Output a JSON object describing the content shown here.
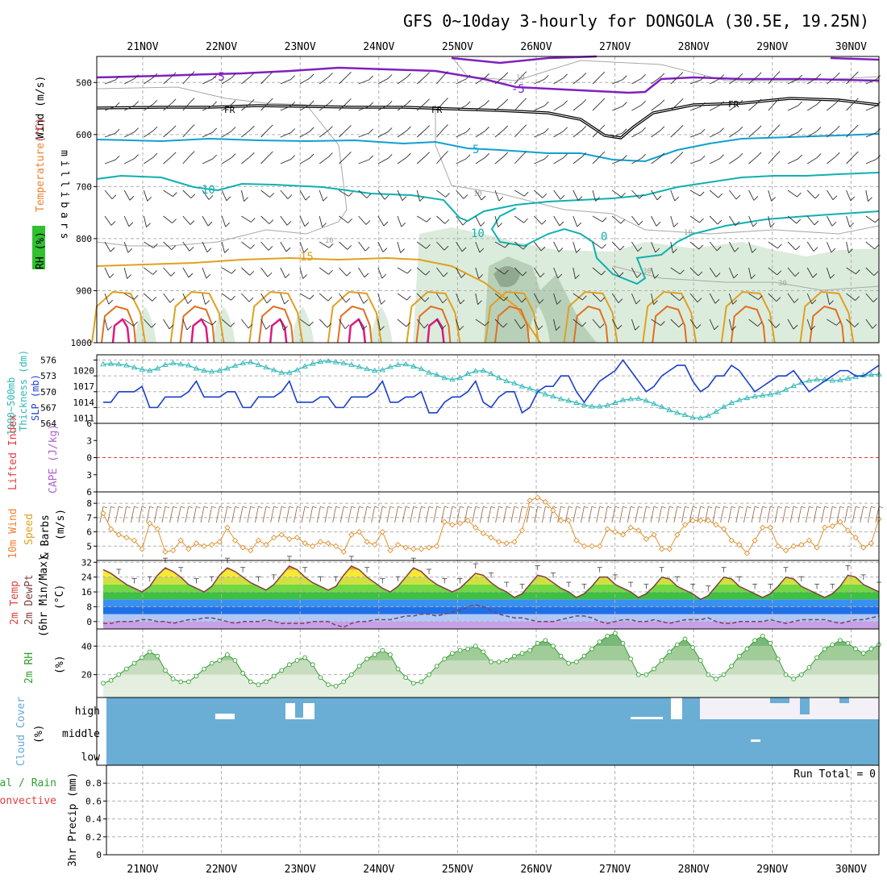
{
  "chart_data": {
    "type": "meteogram",
    "title": "GFS 0~10day 3-hourly for DONGOLA (30.5E, 19.25N)",
    "days": [
      "21NOV",
      "22NOV",
      "23NOV",
      "24NOV",
      "25NOV",
      "26NOV",
      "27NOV",
      "28NOV",
      "29NOV",
      "30NOV"
    ],
    "colors": {
      "purple": "#8020c0",
      "black": "#000000",
      "blue_iso": "#10a0d0",
      "cyan_iso": "#10b0b0",
      "orange_iso": "#e0a020",
      "dkorange_iso": "#e07020",
      "magenta_iso": "#e01880",
      "rh_light": "#dcecdc",
      "rh_mid": "#b8d0b8",
      "rh_dark": "#90a890",
      "slp": "#1a3ecc",
      "thick": "#30b8b8",
      "wind10": "#e09030",
      "cloud": "#6aaed6",
      "cloud_clear": "#f4f0f8"
    },
    "panel_upper": {
      "ylabel_parts": [
        "Wind (m/s)",
        "Temperature (°C)",
        "RH (%)",
        "millibars"
      ],
      "ylabel_wind": "Wind",
      "ylabel_wind_units": "(m/s)",
      "ylabel_temp": "Temperature",
      "ylabel_temp_units": "(°C)",
      "ylabel_rh": "RH",
      "ylabel_rh_units": "(%)",
      "ylabel_mb": "millibars",
      "yticks": [
        500,
        600,
        700,
        800,
        900,
        1000
      ],
      "ylim": [
        450,
        1000
      ],
      "isotherm_labels": {
        "m5": "-5",
        "fr": "FR",
        "p5": "5",
        "p10": "10",
        "p15": "15",
        "p0": "0",
        "rh10": "10",
        "rh30": "30"
      }
    },
    "panel_thickness": {
      "ylabel_left": "1000~500mb Thickness (dm)",
      "ylabel_left_1": "1000~500mb",
      "ylabel_left_2": "Thickness (dm)",
      "ylabel_right": "SLP (mb)",
      "ylabel_right_1": "SLP",
      "ylabel_right_2": "(mb)",
      "yticks_thickness": [
        564,
        567,
        570,
        573,
        576
      ],
      "yticks_slp": [
        1011,
        1014,
        1017,
        1020
      ],
      "ylim_thickness": [
        564,
        577
      ],
      "ylim_slp": [
        1010,
        1023
      ],
      "series": [
        {
          "name": "SLP (mb)",
          "values": [
            1014,
            1014,
            1016,
            1016,
            1016,
            1017,
            1013,
            1013,
            1015,
            1015,
            1015,
            1016,
            1018,
            1015,
            1015,
            1015,
            1016,
            1016,
            1013,
            1013,
            1015,
            1015,
            1015,
            1016,
            1018,
            1014,
            1014,
            1014,
            1015,
            1015,
            1013,
            1013,
            1015,
            1015,
            1015,
            1016,
            1018,
            1014,
            1014,
            1015,
            1015,
            1016,
            1012,
            1012,
            1014,
            1015,
            1015,
            1016,
            1018,
            1014,
            1013,
            1015,
            1016,
            1016,
            1012,
            1013,
            1016,
            1017,
            1017,
            1019,
            1019,
            1016,
            1014,
            1016,
            1018,
            1019,
            1020,
            1022,
            1020,
            1018,
            1016,
            1017,
            1019,
            1020,
            1021,
            1021,
            1018,
            1016,
            1017,
            1019,
            1019,
            1021,
            1020,
            1018,
            1016,
            1017,
            1018,
            1019,
            1019,
            1020,
            1018,
            1016,
            1017,
            1018,
            1019,
            1020,
            1020,
            1019,
            1019,
            1020,
            1021
          ]
        },
        {
          "name": "1000~500mb Thickness (dm)",
          "values": [
            575.2,
            575.3,
            575.2,
            575.0,
            574.6,
            574.2,
            574.0,
            574.4,
            575.1,
            575.4,
            575.2,
            575.0,
            574.4,
            574.0,
            573.8,
            574.0,
            574.4,
            574.9,
            575.4,
            575.6,
            575.1,
            574.6,
            574.1,
            573.6,
            573.6,
            574.1,
            574.8,
            575.3,
            575.7,
            575.8,
            575.6,
            575.4,
            575.1,
            574.7,
            574.3,
            574.0,
            574.1,
            574.7,
            575.1,
            575.2,
            574.8,
            574.3,
            573.6,
            573.2,
            572.6,
            572.3,
            572.6,
            573.4,
            573.9,
            574.0,
            573.4,
            572.6,
            572.0,
            571.6,
            571.0,
            570.6,
            570.1,
            569.5,
            569.1,
            568.6,
            568.3,
            567.9,
            567.5,
            567.2,
            567.2,
            567.4,
            567.9,
            568.4,
            568.6,
            568.7,
            568.3,
            567.7,
            567.1,
            566.5,
            566.0,
            565.6,
            565.1,
            565.0,
            565.4,
            566.2,
            567.1,
            567.9,
            568.4,
            568.8,
            569.1,
            569.3,
            569.5,
            569.8,
            570.4,
            571.1,
            571.7,
            572.1,
            572.3,
            572.3,
            572.1,
            572.2,
            572.5,
            572.8,
            573.1,
            573.2,
            573.3
          ]
        }
      ]
    },
    "panel_cape": {
      "ylabel_left": "Lifted Index",
      "ylabel_right": "CAPE (J/kg)",
      "ylabel_right_1": "CAPE",
      "ylabel_right_2": "(J/kg)",
      "yticks_li": [
        -6,
        -3,
        0,
        3,
        6
      ],
      "ylim_li": [
        -6,
        6
      ],
      "series": [
        {
          "name": "Lifted Index",
          "values": []
        },
        {
          "name": "CAPE (J/kg)",
          "values": []
        }
      ]
    },
    "panel_wind10": {
      "ylabel_left": "10m Wind",
      "ylabel_mid": "Speed",
      "ylabel_right": "& Barbs",
      "ylabel_units": "(m/s)",
      "yticks": [
        5,
        6,
        7,
        8
      ],
      "ylim": [
        4,
        8.8
      ],
      "series": [
        {
          "name": "10m Wind Speed (m/s)",
          "values": [
            7.3,
            6.2,
            5.8,
            5.6,
            5.4,
            4.8,
            6.6,
            6.2,
            4.6,
            4.7,
            5.4,
            4.8,
            5.2,
            5.0,
            5.1,
            5.3,
            6.3,
            5.4,
            4.9,
            4.7,
            5.4,
            5.1,
            5.6,
            5.8,
            5.5,
            5.6,
            5.2,
            5.0,
            5.3,
            5.2,
            5.0,
            4.6,
            5.8,
            6.0,
            5.3,
            5.1,
            6.0,
            4.7,
            5.1,
            4.9,
            4.8,
            4.8,
            4.9,
            5.0,
            6.7,
            6.5,
            6.6,
            6.8,
            6.3,
            5.9,
            5.6,
            5.3,
            5.2,
            5.3,
            6.1,
            8.2,
            8.4,
            8.1,
            7.5,
            6.8,
            6.8,
            5.4,
            5.0,
            5.0,
            5.0,
            6.2,
            6.0,
            5.8,
            6.3,
            6.1,
            5.5,
            5.8,
            4.8,
            4.8,
            5.8,
            6.5,
            6.8,
            6.8,
            6.8,
            6.5,
            6.2,
            5.4,
            5.1,
            4.5,
            5.4,
            6.3,
            6.3,
            5.0,
            4.7,
            5.0,
            5.1,
            5.4,
            4.9,
            6.3,
            6.4,
            6.7,
            6.1,
            5.6,
            4.9,
            5.2,
            6.9
          ]
        }
      ]
    },
    "panel_temp2m": {
      "ylabel_1": "2m Temp",
      "ylabel_2": "2m DewPt",
      "ylabel_3": "(6hr Min/Max)",
      "ylabel_units": "(°C)",
      "yticks": [
        0,
        8,
        16,
        24,
        32
      ],
      "ylim": [
        -4,
        33
      ],
      "band_colors": [
        "#c8a0e8",
        "#b0c8f8",
        "#1e70e8",
        "#3890f0",
        "#40c040",
        "#70d840",
        "#d0e040",
        "#f8e838",
        "#f0a030",
        "#e06020"
      ],
      "band_edges": [
        -4,
        0,
        4,
        8,
        12,
        16,
        20,
        24,
        28,
        32
      ],
      "series": [
        {
          "name": "2m Temp (°C)",
          "values": [
            28,
            26,
            23,
            20,
            18,
            16,
            19,
            25,
            29,
            27,
            24,
            20,
            18,
            16,
            19,
            25,
            29,
            27,
            24,
            21,
            19,
            17,
            20,
            25,
            30,
            28,
            24,
            21,
            19,
            17,
            19,
            25,
            30,
            28,
            24,
            21,
            18,
            16,
            19,
            24,
            29,
            27,
            23,
            20,
            18,
            16,
            18,
            22,
            26,
            25,
            21,
            18,
            16,
            13,
            15,
            20,
            25,
            24,
            21,
            18,
            16,
            13,
            15,
            19,
            24,
            24,
            20,
            18,
            16,
            13,
            15,
            19,
            24,
            23,
            19,
            17,
            15,
            12,
            14,
            19,
            24,
            23,
            19,
            17,
            15,
            13,
            15,
            19,
            24,
            23,
            19,
            17,
            15,
            13,
            15,
            19,
            25,
            24,
            20,
            18,
            16
          ]
        },
        {
          "name": "2m DewPt (°C)",
          "values": [
            -1,
            -1,
            0,
            0,
            0,
            1,
            1,
            0,
            0,
            -1,
            0,
            1,
            1,
            2,
            2,
            1,
            0,
            -1,
            0,
            0,
            0,
            1,
            0,
            -1,
            -1,
            -1,
            -1,
            0,
            0,
            0,
            -2,
            -3,
            -1,
            0,
            0,
            1,
            1,
            1,
            2,
            3,
            3,
            4,
            4,
            3,
            4,
            5,
            6,
            8,
            9,
            8,
            6,
            4,
            3,
            2,
            2,
            1,
            0,
            0,
            0,
            1,
            2,
            3,
            3,
            2,
            0,
            -1,
            0,
            1,
            1,
            0,
            0,
            1,
            0,
            -1,
            0,
            1,
            1,
            1,
            2,
            0,
            -1,
            -1,
            0,
            0,
            0,
            0,
            1,
            0,
            -1,
            0,
            1,
            1,
            1,
            1,
            0,
            -1,
            0,
            1,
            1,
            2,
            3
          ]
        }
      ]
    },
    "panel_rh2m": {
      "ylabel": "2m RH",
      "ylabel_units": "(%)",
      "yticks": [
        20,
        40
      ],
      "ylim": [
        4,
        52
      ],
      "series": [
        {
          "name": "2m RH (%)",
          "values": [
            14,
            16,
            20,
            24,
            28,
            32,
            36,
            33,
            23,
            17,
            15,
            15,
            19,
            24,
            28,
            30,
            34,
            30,
            21,
            15,
            13,
            15,
            19,
            23,
            27,
            30,
            32,
            27,
            18,
            13,
            12,
            15,
            20,
            26,
            31,
            34,
            37,
            34,
            24,
            18,
            14,
            15,
            20,
            26,
            31,
            35,
            37,
            38,
            40,
            36,
            29,
            29,
            30,
            33,
            35,
            37,
            42,
            44,
            40,
            33,
            28,
            29,
            33,
            38,
            43,
            47,
            49,
            42,
            31,
            20,
            20,
            24,
            30,
            36,
            41,
            45,
            39,
            30,
            20,
            17,
            20,
            26,
            33,
            38,
            44,
            47,
            42,
            31,
            20,
            17,
            20,
            25,
            32,
            38,
            41,
            44,
            42,
            38,
            35,
            38,
            41
          ]
        }
      ]
    },
    "panel_cloud": {
      "ylabel": "Cloud Cover",
      "ylabel_units": "(%)",
      "levels": [
        "high",
        "middle",
        "low"
      ],
      "coverage_low_pct": 100,
      "coverage_middle_pct": 100,
      "coverage_high_pct_after_28nov": 0
    },
    "panel_precip": {
      "ylabel_left_1": "Total / Rain",
      "ylabel_left_2": "Convective",
      "ylabel_right": "3hr Precip (mm)",
      "yticks": [
        0,
        0.2,
        0.4,
        0.6,
        0.8
      ],
      "ylim": [
        0,
        1.0
      ],
      "run_total_label": "Run Total = 0",
      "series": [
        {
          "name": "3hr Precip (mm)",
          "values": []
        }
      ]
    }
  }
}
